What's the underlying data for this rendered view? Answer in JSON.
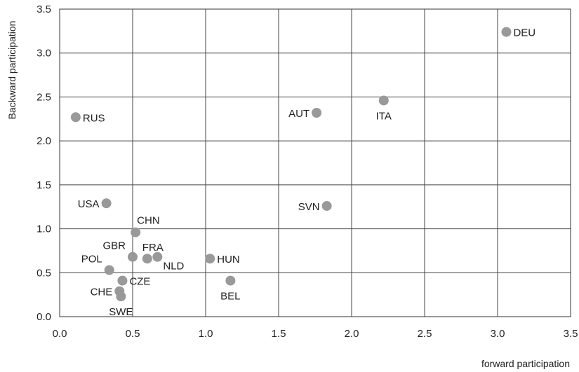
{
  "chart_data": {
    "type": "scatter",
    "xlabel": "forward participation",
    "ylabel": "Backward participation",
    "xlim": [
      0,
      3.5
    ],
    "ylim": [
      0,
      3.5
    ],
    "xticks": [
      "0.0",
      "0.5",
      "1.0",
      "1.5",
      "2.0",
      "2.5",
      "3.0",
      "3.5"
    ],
    "yticks": [
      "0.0",
      "0.5",
      "1.0",
      "1.5",
      "2.0",
      "2.5",
      "3.0",
      "3.5"
    ],
    "grid": true,
    "marker_color": "#999999",
    "points": [
      {
        "label": "DEU",
        "x": 3.06,
        "y": 3.24,
        "label_pos": "right"
      },
      {
        "label": "RUS",
        "x": 0.11,
        "y": 2.27,
        "label_pos": "right"
      },
      {
        "label": "AUT",
        "x": 1.76,
        "y": 2.32,
        "label_pos": "left"
      },
      {
        "label": "ITA",
        "x": 2.22,
        "y": 2.46,
        "label_pos": "below"
      },
      {
        "label": "SVN",
        "x": 1.83,
        "y": 1.26,
        "label_pos": "left"
      },
      {
        "label": "USA",
        "x": 0.32,
        "y": 1.29,
        "label_pos": "left"
      },
      {
        "label": "CHN",
        "x": 0.52,
        "y": 0.96,
        "label_pos": "above-right"
      },
      {
        "label": "GBR",
        "x": 0.5,
        "y": 0.68,
        "label_pos": "above-left"
      },
      {
        "label": "FRA",
        "x": 0.6,
        "y": 0.66,
        "label_pos": "above"
      },
      {
        "label": "NLD",
        "x": 0.67,
        "y": 0.68,
        "label_pos": "below-right"
      },
      {
        "label": "POL",
        "x": 0.34,
        "y": 0.53,
        "label_pos": "above-left"
      },
      {
        "label": "CZE",
        "x": 0.43,
        "y": 0.41,
        "label_pos": "right"
      },
      {
        "label": "CHE",
        "x": 0.41,
        "y": 0.29,
        "label_pos": "left"
      },
      {
        "label": "SWE",
        "x": 0.42,
        "y": 0.23,
        "label_pos": "below"
      },
      {
        "label": "HUN",
        "x": 1.03,
        "y": 0.66,
        "label_pos": "right"
      },
      {
        "label": "BEL",
        "x": 1.17,
        "y": 0.41,
        "label_pos": "below"
      }
    ]
  }
}
